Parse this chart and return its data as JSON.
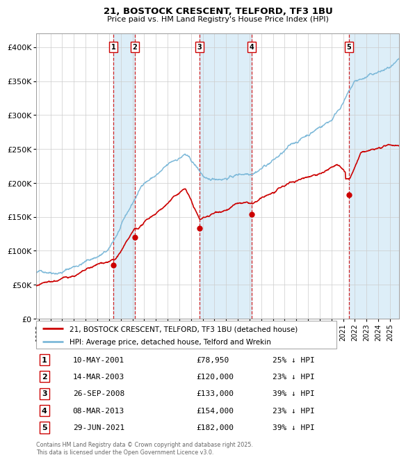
{
  "title": "21, BOSTOCK CRESCENT, TELFORD, TF3 1BU",
  "subtitle": "Price paid vs. HM Land Registry's House Price Index (HPI)",
  "footer": "Contains HM Land Registry data © Crown copyright and database right 2025.\nThis data is licensed under the Open Government Licence v3.0.",
  "legend_line1": "21, BOSTOCK CRESCENT, TELFORD, TF3 1BU (detached house)",
  "legend_line2": "HPI: Average price, detached house, Telford and Wrekin",
  "transactions": [
    {
      "num": 1,
      "date": "10-MAY-2001",
      "price": 78950,
      "pct": "25%",
      "x_year": 2001.36
    },
    {
      "num": 2,
      "date": "14-MAR-2003",
      "price": 120000,
      "pct": "23%",
      "x_year": 2003.2
    },
    {
      "num": 3,
      "date": "26-SEP-2008",
      "price": 133000,
      "pct": "39%",
      "x_year": 2008.73
    },
    {
      "num": 4,
      "date": "08-MAR-2013",
      "price": 154000,
      "pct": "23%",
      "x_year": 2013.18
    },
    {
      "num": 5,
      "date": "29-JUN-2021",
      "price": 182000,
      "pct": "39%",
      "x_year": 2021.49
    }
  ],
  "hpi_color": "#7db9d9",
  "price_color": "#cc0000",
  "dashed_color": "#cc0000",
  "shade_color": "#ddeef8",
  "ylim": [
    0,
    420000
  ],
  "xlim_start": 1994.8,
  "xlim_end": 2025.8,
  "yticks": [
    0,
    50000,
    100000,
    150000,
    200000,
    250000,
    300000,
    350000,
    400000
  ],
  "ytick_labels": [
    "£0",
    "£50K",
    "£100K",
    "£150K",
    "£200K",
    "£250K",
    "£300K",
    "£350K",
    "£400K"
  ],
  "xtick_years": [
    1995,
    1996,
    1997,
    1998,
    1999,
    2000,
    2001,
    2002,
    2003,
    2004,
    2005,
    2006,
    2007,
    2008,
    2009,
    2010,
    2011,
    2012,
    2013,
    2014,
    2015,
    2016,
    2017,
    2018,
    2019,
    2020,
    2021,
    2022,
    2023,
    2024,
    2025
  ]
}
